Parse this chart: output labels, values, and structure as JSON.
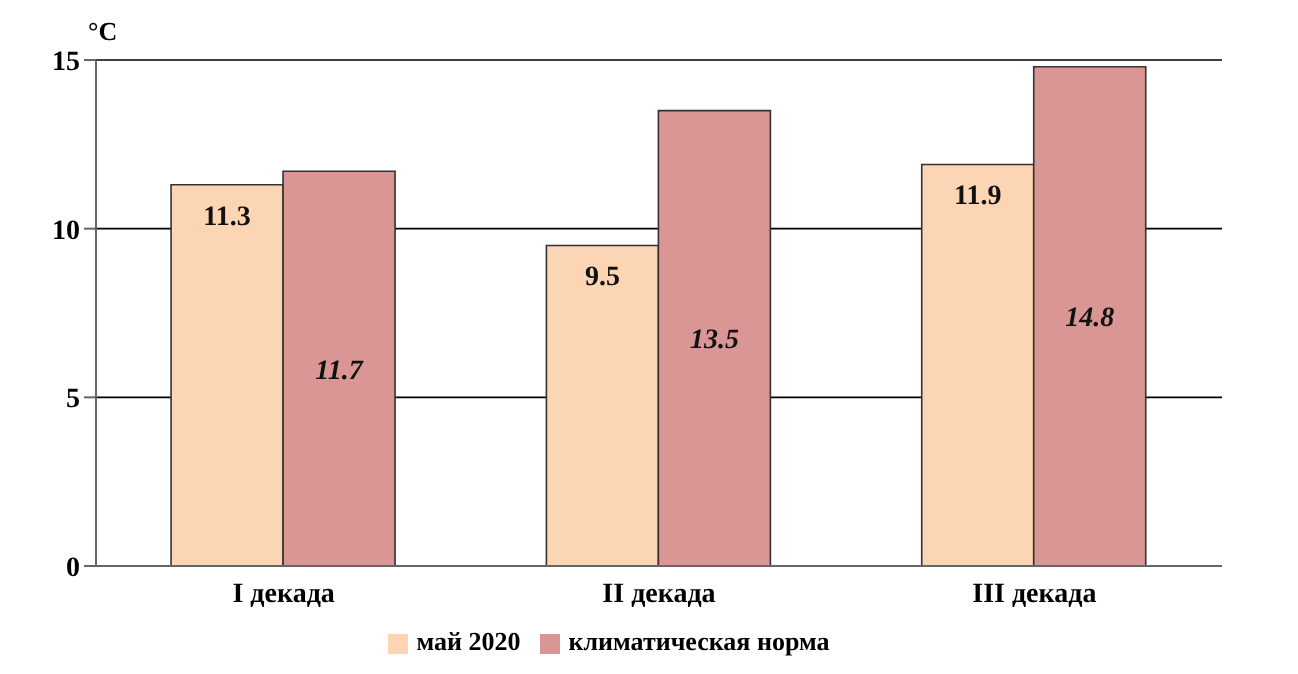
{
  "chart_data": {
    "type": "bar",
    "ylabel": "°C",
    "categories": [
      "I декада",
      "II декада",
      "III декада"
    ],
    "series": [
      {
        "name": "май 2020",
        "color": "#fcd5b4",
        "values": [
          11.3,
          9.5,
          11.9
        ]
      },
      {
        "name": "климатическая норма",
        "color": "#d99694",
        "values": [
          11.7,
          13.5,
          14.8
        ]
      }
    ],
    "ylim": [
      0,
      15
    ],
    "yticks": [
      0,
      5,
      10,
      15
    ],
    "grid": "y",
    "legend": "bottom",
    "data_labels": true
  }
}
